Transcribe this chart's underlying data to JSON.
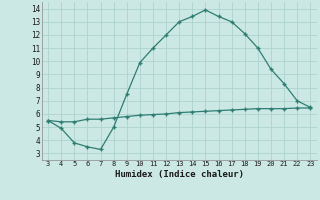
{
  "xlabel": "Humidex (Indice chaleur)",
  "line1_x": [
    3,
    4,
    5,
    6,
    7,
    8,
    9,
    10,
    11,
    12,
    13,
    14,
    15,
    16,
    17,
    18,
    19,
    20,
    21,
    22,
    23
  ],
  "line1_y": [
    5.5,
    4.9,
    3.8,
    3.5,
    3.3,
    5.0,
    7.5,
    9.9,
    11.0,
    12.0,
    13.0,
    13.4,
    13.9,
    13.4,
    13.0,
    12.1,
    11.0,
    9.4,
    8.3,
    7.0,
    6.5
  ],
  "line2_x": [
    3,
    4,
    5,
    6,
    7,
    8,
    9,
    10,
    11,
    12,
    13,
    14,
    15,
    16,
    17,
    18,
    19,
    20,
    21,
    22,
    23
  ],
  "line2_y": [
    5.5,
    5.4,
    5.4,
    5.6,
    5.6,
    5.7,
    5.8,
    5.9,
    5.95,
    6.0,
    6.1,
    6.15,
    6.2,
    6.25,
    6.3,
    6.35,
    6.4,
    6.4,
    6.4,
    6.45,
    6.45
  ],
  "line_color": "#2e7d72",
  "bg_color": "#cce8e4",
  "grid_color": "#aed4cf",
  "text_color": "#1a1a1a",
  "xlim": [
    3,
    23
  ],
  "ylim": [
    3,
    14
  ],
  "xticks": [
    3,
    4,
    5,
    6,
    7,
    8,
    9,
    10,
    11,
    12,
    13,
    14,
    15,
    16,
    17,
    18,
    19,
    20,
    21,
    22,
    23
  ],
  "yticks": [
    3,
    4,
    5,
    6,
    7,
    8,
    9,
    10,
    11,
    12,
    13,
    14
  ],
  "marker": "+"
}
